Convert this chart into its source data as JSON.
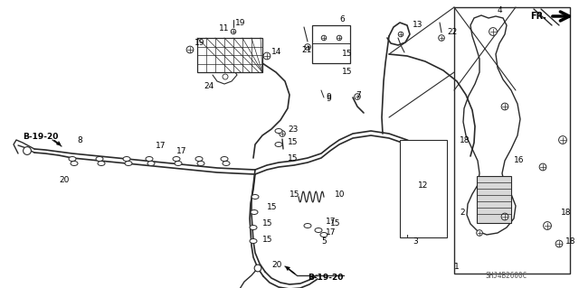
{
  "bg_color": "#ffffff",
  "fig_width": 6.4,
  "fig_height": 3.19,
  "dpi": 100,
  "watermark": "SHJ4B2600C",
  "fr_label": "FR.",
  "lines_color": "#2a2a2a",
  "text_color": "#000000"
}
